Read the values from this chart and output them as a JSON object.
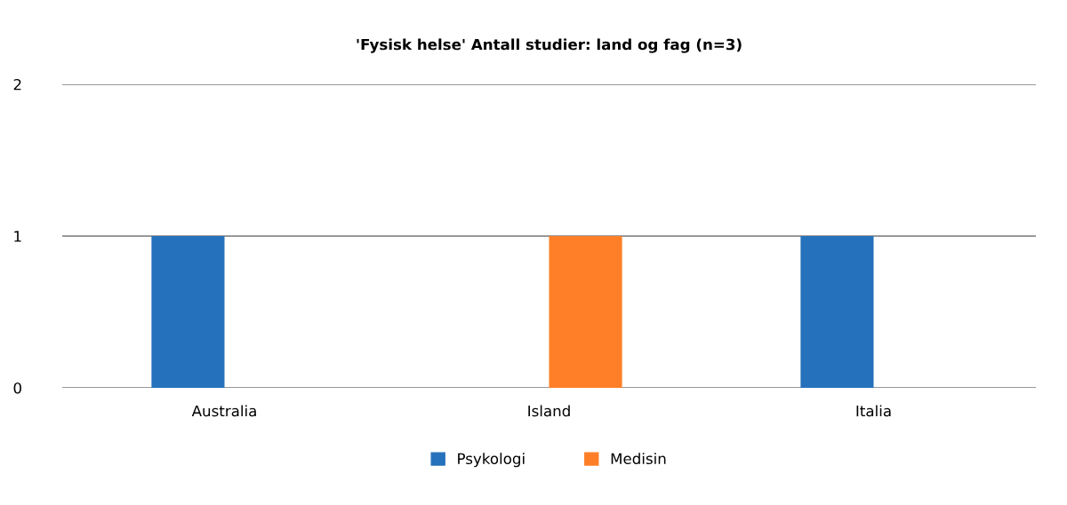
{
  "chart_data": {
    "type": "bar",
    "title": "'Fysisk helse' Antall studier: land og fag (n=3)",
    "categories": [
      "Australia",
      "Island",
      "Italia"
    ],
    "series": [
      {
        "name": "Psykologi",
        "color": "#2671bb",
        "values": [
          1,
          0,
          1
        ]
      },
      {
        "name": "Medisin",
        "color": "#fe7f27",
        "values": [
          0,
          1,
          0
        ]
      }
    ],
    "ylim": [
      0,
      2
    ],
    "yticks": [
      0,
      1,
      2
    ],
    "grid": "y",
    "legend": "bottom"
  }
}
